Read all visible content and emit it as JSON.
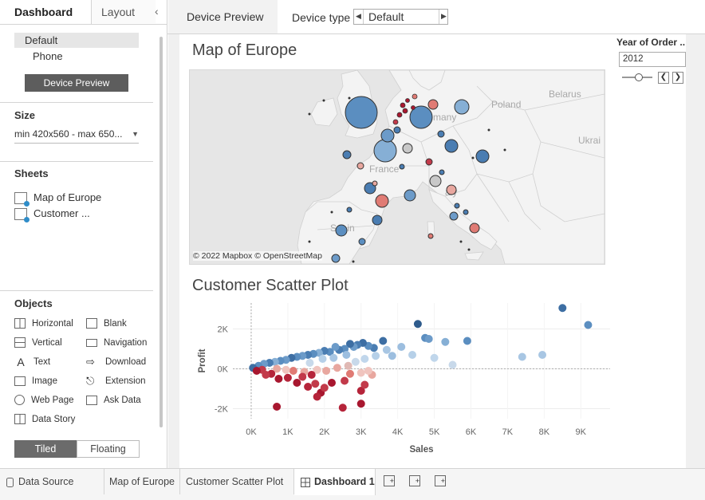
{
  "left_panel": {
    "tabs": [
      {
        "label": "Dashboard"
      },
      {
        "label": "Layout"
      }
    ],
    "device_options": [
      "Default",
      "Phone"
    ],
    "device_preview_button": "Device Preview",
    "size": {
      "heading": "Size",
      "value": "min 420x560 - max 650..."
    },
    "sheets": {
      "heading": "Sheets",
      "items": [
        "Map of Europe",
        "Customer ..."
      ]
    },
    "objects": {
      "heading": "Objects",
      "items": [
        "Horizontal",
        "Blank",
        "Vertical",
        "Navigation",
        "Text",
        "Download",
        "Image",
        "Extension",
        "Web Page",
        "Ask Data",
        "Data Story"
      ]
    },
    "layout_toggle": [
      "Tiled",
      "Floating"
    ]
  },
  "toolbar": {
    "device_preview_tab": "Device Preview",
    "device_type_label": "Device type",
    "device_type_value": "Default"
  },
  "map": {
    "title": "Map of Europe",
    "attribution": "© 2022 Mapbox © OpenStreetMap",
    "country_labels": [
      "Poland",
      "Belarus",
      "many",
      "France",
      "Ukrai",
      "aly",
      "Spain"
    ]
  },
  "filter": {
    "label": "Year of Order ..",
    "value": "2012"
  },
  "scatter": {
    "title": "Customer Scatter Plot"
  },
  "chart_data": {
    "type": "scatter",
    "title": "Customer Scatter Plot",
    "xlabel": "Sales",
    "ylabel": "Profit",
    "xticks": [
      "0K",
      "1K",
      "2K",
      "3K",
      "4K",
      "5K",
      "6K",
      "7K",
      "8K",
      "9K"
    ],
    "yticks": [
      "2K",
      "0K",
      "-2K"
    ],
    "xlim": [
      -500,
      9800
    ],
    "ylim": [
      -2500,
      3300
    ],
    "points": [
      {
        "x": 8500,
        "y": 3050,
        "c": "#3d6ea3"
      },
      {
        "x": 9200,
        "y": 2200,
        "c": "#5b8ec0"
      },
      {
        "x": 4550,
        "y": 2250,
        "c": "#2e5b8c"
      },
      {
        "x": 4750,
        "y": 1550,
        "c": "#5b8ec0"
      },
      {
        "x": 4850,
        "y": 1500,
        "c": "#6c9bc9"
      },
      {
        "x": 5300,
        "y": 1350,
        "c": "#86afd5"
      },
      {
        "x": 5900,
        "y": 1400,
        "c": "#5b8ec0"
      },
      {
        "x": 4100,
        "y": 1100,
        "c": "#9cbedf"
      },
      {
        "x": 3700,
        "y": 950,
        "c": "#a8c6e3"
      },
      {
        "x": 4400,
        "y": 700,
        "c": "#b6d0e8"
      },
      {
        "x": 5000,
        "y": 550,
        "c": "#c0d6eb"
      },
      {
        "x": 5500,
        "y": 200,
        "c": "#c8d9ea"
      },
      {
        "x": 7400,
        "y": 600,
        "c": "#a8c6e3"
      },
      {
        "x": 7950,
        "y": 700,
        "c": "#a8c6e3"
      },
      {
        "x": 3600,
        "y": 1400,
        "c": "#3d6ea3"
      },
      {
        "x": 3350,
        "y": 1050,
        "c": "#4a7db2"
      },
      {
        "x": 3200,
        "y": 1150,
        "c": "#5b8ec0"
      },
      {
        "x": 3050,
        "y": 1300,
        "c": "#3d6ea3"
      },
      {
        "x": 2900,
        "y": 1200,
        "c": "#4a7db2"
      },
      {
        "x": 2800,
        "y": 1100,
        "c": "#6c9bc9"
      },
      {
        "x": 2700,
        "y": 1250,
        "c": "#3d6ea3"
      },
      {
        "x": 2550,
        "y": 1000,
        "c": "#5b8ec0"
      },
      {
        "x": 2400,
        "y": 950,
        "c": "#4a7db2"
      },
      {
        "x": 2300,
        "y": 1100,
        "c": "#6c9bc9"
      },
      {
        "x": 2150,
        "y": 850,
        "c": "#5b8ec0"
      },
      {
        "x": 2000,
        "y": 900,
        "c": "#4a7db2"
      },
      {
        "x": 1850,
        "y": 800,
        "c": "#86afd5"
      },
      {
        "x": 1700,
        "y": 750,
        "c": "#5b8ec0"
      },
      {
        "x": 1550,
        "y": 700,
        "c": "#4a7db2"
      },
      {
        "x": 1400,
        "y": 650,
        "c": "#6c9bc9"
      },
      {
        "x": 1250,
        "y": 600,
        "c": "#5b8ec0"
      },
      {
        "x": 1100,
        "y": 550,
        "c": "#3d6ea3"
      },
      {
        "x": 950,
        "y": 450,
        "c": "#6c9bc9"
      },
      {
        "x": 800,
        "y": 400,
        "c": "#5b8ec0"
      },
      {
        "x": 650,
        "y": 350,
        "c": "#86afd5"
      },
      {
        "x": 500,
        "y": 300,
        "c": "#4a7db2"
      },
      {
        "x": 350,
        "y": 250,
        "c": "#6c9bc9"
      },
      {
        "x": 200,
        "y": 150,
        "c": "#5b8ec0"
      },
      {
        "x": 50,
        "y": 50,
        "c": "#3d6ea3"
      },
      {
        "x": 2600,
        "y": 700,
        "c": "#9cbedf"
      },
      {
        "x": 2250,
        "y": 550,
        "c": "#a8c6e3"
      },
      {
        "x": 1950,
        "y": 500,
        "c": "#b6d0e8"
      },
      {
        "x": 3100,
        "y": 500,
        "c": "#c0d6eb"
      },
      {
        "x": 3400,
        "y": 650,
        "c": "#b6d0e8"
      },
      {
        "x": 2850,
        "y": 350,
        "c": "#c8d9ea"
      },
      {
        "x": 1600,
        "y": 300,
        "c": "#c8d9ea"
      },
      {
        "x": 3850,
        "y": 650,
        "c": "#9cbedf"
      },
      {
        "x": 2650,
        "y": 150,
        "c": "#e0b9b4"
      },
      {
        "x": 2350,
        "y": 50,
        "c": "#e8a79f"
      },
      {
        "x": 2050,
        "y": -100,
        "c": "#e8a79f"
      },
      {
        "x": 1800,
        "y": -50,
        "c": "#f0c4be"
      },
      {
        "x": 1450,
        "y": -150,
        "c": "#e8a79f"
      },
      {
        "x": 1150,
        "y": -100,
        "c": "#e07b74"
      },
      {
        "x": 950,
        "y": -50,
        "c": "#f0c4be"
      },
      {
        "x": 700,
        "y": 0,
        "c": "#e8a79f"
      },
      {
        "x": 3000,
        "y": -200,
        "c": "#f0c4be"
      },
      {
        "x": 3300,
        "y": -300,
        "c": "#e8a79f"
      },
      {
        "x": 3200,
        "y": -100,
        "c": "#f0c4be"
      },
      {
        "x": 2700,
        "y": -250,
        "c": "#e07b74"
      },
      {
        "x": 550,
        "y": -250,
        "c": "#b5243a"
      },
      {
        "x": 400,
        "y": -300,
        "c": "#c23a4a"
      },
      {
        "x": 750,
        "y": -500,
        "c": "#a8172f"
      },
      {
        "x": 1000,
        "y": -450,
        "c": "#b5243a"
      },
      {
        "x": 1250,
        "y": -700,
        "c": "#a8172f"
      },
      {
        "x": 1550,
        "y": -900,
        "c": "#b5243a"
      },
      {
        "x": 1750,
        "y": -750,
        "c": "#c23a4a"
      },
      {
        "x": 1900,
        "y": -1200,
        "c": "#a8172f"
      },
      {
        "x": 1800,
        "y": -1400,
        "c": "#b5243a"
      },
      {
        "x": 2000,
        "y": -950,
        "c": "#c23a4a"
      },
      {
        "x": 2200,
        "y": -700,
        "c": "#a8172f"
      },
      {
        "x": 3000,
        "y": -1100,
        "c": "#b5243a"
      },
      {
        "x": 3100,
        "y": -800,
        "c": "#c23a4a"
      },
      {
        "x": 700,
        "y": -1900,
        "c": "#a8172f"
      },
      {
        "x": 2500,
        "y": -1950,
        "c": "#b5243a"
      },
      {
        "x": 3000,
        "y": -1750,
        "c": "#a8172f"
      },
      {
        "x": 1400,
        "y": -400,
        "c": "#c23a4a"
      },
      {
        "x": 1650,
        "y": -300,
        "c": "#b5243a"
      },
      {
        "x": 2550,
        "y": -600,
        "c": "#c23a4a"
      },
      {
        "x": 300,
        "y": -50,
        "c": "#c23a4a"
      },
      {
        "x": 150,
        "y": -100,
        "c": "#a8172f"
      }
    ]
  },
  "bottom_tabs": {
    "data_source": "Data Source",
    "sheets": [
      "Map of Europe",
      "Customer Scatter Plot",
      "Dashboard 1"
    ]
  }
}
